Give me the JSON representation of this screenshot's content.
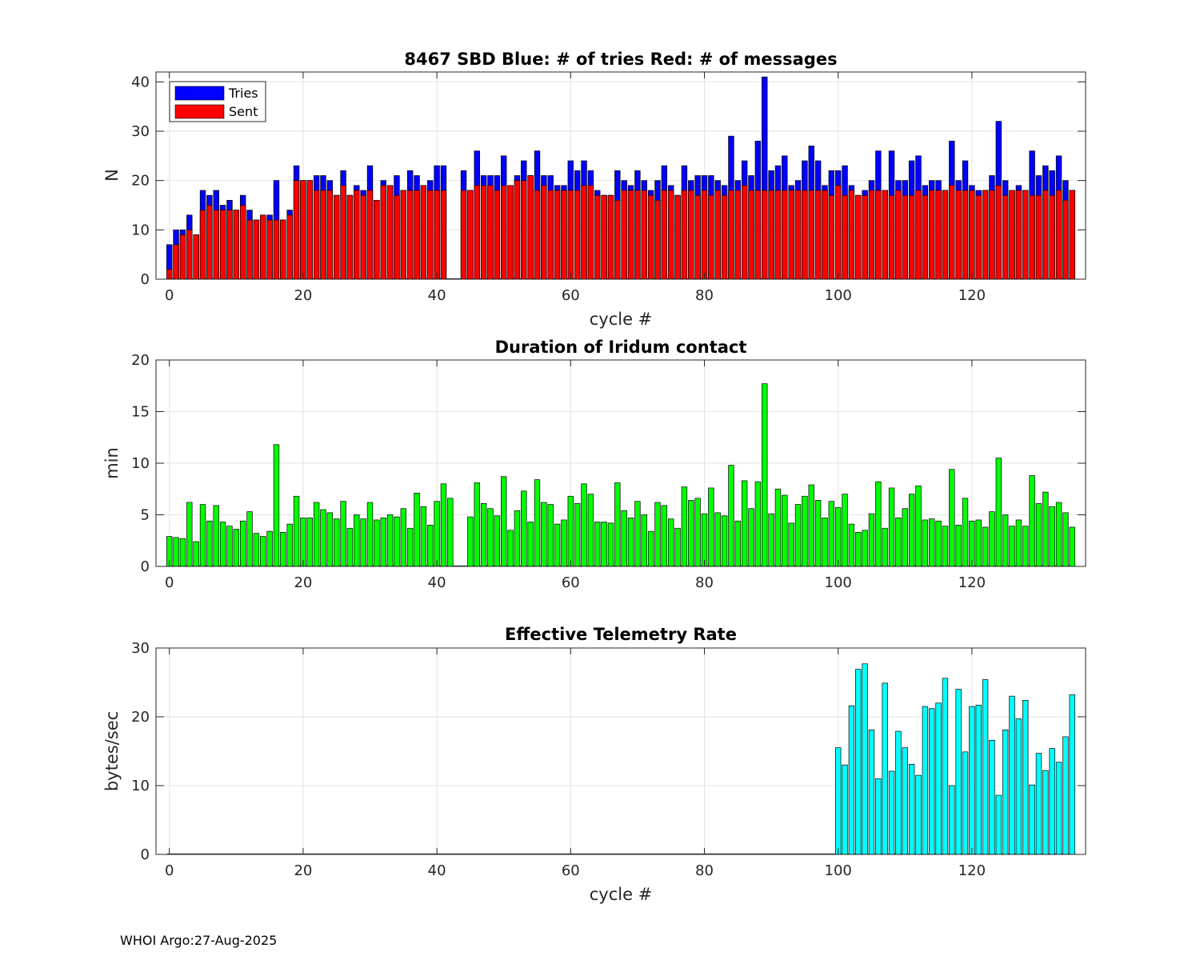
{
  "footer": "WHOI Argo:27-Aug-2025",
  "chart_data": [
    {
      "type": "bar",
      "stacked": "overlay",
      "title": "8467 SBD  Blue: # of tries   Red: # of messages",
      "xlabel": "cycle #",
      "ylabel": "N",
      "xlim": [
        -2,
        137
      ],
      "ylim": [
        0,
        42
      ],
      "xticks": [
        0,
        20,
        40,
        60,
        80,
        100,
        120
      ],
      "yticks": [
        0,
        10,
        20,
        30,
        40
      ],
      "grid": true,
      "legend_position": "top-left",
      "x_start": 0,
      "series": [
        {
          "name": "Tries",
          "color": "#0000ff",
          "values": [
            7,
            10,
            10,
            13,
            9,
            18,
            17,
            18,
            15,
            16,
            14,
            17,
            14,
            12,
            13,
            13,
            20,
            12,
            14,
            23,
            20,
            20,
            21,
            21,
            20,
            17,
            22,
            17,
            19,
            18,
            23,
            16,
            20,
            19,
            21,
            18,
            22,
            21,
            19,
            20,
            23,
            23,
            null,
            null,
            22,
            18,
            26,
            21,
            21,
            21,
            25,
            19,
            21,
            24,
            21,
            26,
            21,
            21,
            19,
            19,
            24,
            22,
            24,
            22,
            18,
            17,
            17,
            22,
            20,
            19,
            22,
            20,
            18,
            20,
            23,
            19,
            17,
            23,
            20,
            21,
            21,
            21,
            20,
            19,
            29,
            20,
            24,
            21,
            28,
            41,
            22,
            23,
            25,
            19,
            20,
            24,
            27,
            24,
            19,
            22,
            22,
            23,
            19,
            17,
            18,
            20,
            26,
            18,
            26,
            20,
            20,
            24,
            25,
            19,
            20,
            20,
            18,
            28,
            20,
            24,
            19,
            18,
            18,
            21,
            32,
            20,
            18,
            19,
            18,
            26,
            21,
            23,
            22,
            25,
            20,
            18
          ]
        },
        {
          "name": "Sent",
          "color": "#ff0000",
          "values": [
            2,
            7,
            9,
            10,
            9,
            14,
            15,
            14,
            14,
            14,
            14,
            15,
            12,
            12,
            13,
            12,
            12,
            12,
            13,
            20,
            20,
            20,
            18,
            18,
            18,
            17,
            19,
            17,
            18,
            17,
            18,
            16,
            19,
            19,
            17,
            18,
            18,
            18,
            19,
            18,
            18,
            18,
            null,
            null,
            18,
            18,
            19,
            19,
            19,
            18,
            19,
            19,
            20,
            20,
            21,
            18,
            19,
            18,
            18,
            18,
            18,
            18,
            19,
            19,
            17,
            17,
            17,
            16,
            18,
            18,
            18,
            18,
            17,
            16,
            18,
            18,
            17,
            18,
            18,
            17,
            18,
            17,
            18,
            17,
            18,
            18,
            19,
            18,
            18,
            18,
            18,
            18,
            18,
            18,
            18,
            18,
            18,
            18,
            18,
            17,
            19,
            17,
            18,
            17,
            17,
            18,
            18,
            18,
            17,
            18,
            17,
            17,
            18,
            17,
            18,
            18,
            18,
            19,
            18,
            18,
            18,
            17,
            18,
            18,
            19,
            17,
            18,
            18,
            18,
            17,
            17,
            18,
            17,
            18,
            16,
            18
          ]
        }
      ]
    },
    {
      "type": "bar",
      "title": "Duration of Iridum contact",
      "xlabel": "",
      "ylabel": "min",
      "xlim": [
        -2,
        137
      ],
      "ylim": [
        0,
        20
      ],
      "xticks": [
        0,
        20,
        40,
        60,
        80,
        100,
        120
      ],
      "yticks": [
        0,
        5,
        10,
        15,
        20
      ],
      "grid": true,
      "x_start": 0,
      "series": [
        {
          "name": "Duration",
          "color": "#00ff00",
          "values": [
            2.9,
            2.8,
            2.7,
            6.2,
            2.4,
            6.0,
            4.4,
            5.9,
            4.3,
            3.9,
            3.6,
            4.4,
            5.3,
            3.2,
            2.9,
            3.4,
            11.8,
            3.3,
            4.1,
            6.8,
            4.7,
            4.7,
            6.2,
            5.5,
            5.2,
            4.6,
            6.3,
            3.7,
            5.0,
            4.6,
            6.2,
            4.5,
            4.7,
            5.0,
            4.8,
            5.6,
            3.7,
            7.1,
            5.8,
            4.0,
            6.3,
            8.0,
            6.6,
            null,
            null,
            4.8,
            8.1,
            6.1,
            5.6,
            4.9,
            8.7,
            3.5,
            5.4,
            7.3,
            4.3,
            8.4,
            6.2,
            6.0,
            4.1,
            4.5,
            6.8,
            6.1,
            8.0,
            7.0,
            4.3,
            4.3,
            4.2,
            8.1,
            5.4,
            4.7,
            6.3,
            5.0,
            3.4,
            6.2,
            5.9,
            4.6,
            3.7,
            7.7,
            6.4,
            6.6,
            5.1,
            7.6,
            5.2,
            4.9,
            9.8,
            4.4,
            8.3,
            5.6,
            8.2,
            17.7,
            5.1,
            7.5,
            6.9,
            4.2,
            6.0,
            6.8,
            7.9,
            6.4,
            4.7,
            6.3,
            5.7,
            7.0,
            4.1,
            3.3,
            3.5,
            5.1,
            8.2,
            3.7,
            7.6,
            4.7,
            5.6,
            7.0,
            7.8,
            4.5,
            4.6,
            4.4,
            3.9,
            9.4,
            4.0,
            6.6,
            4.4,
            4.5,
            3.8,
            5.3,
            10.5,
            5.0,
            3.9,
            4.5,
            3.9,
            8.8,
            6.1,
            7.2,
            5.8,
            6.2,
            5.2,
            3.8
          ]
        }
      ]
    },
    {
      "type": "bar",
      "title": "Effective Telemetry Rate",
      "xlabel": "cycle #",
      "ylabel": "bytes/sec",
      "xlim": [
        -2,
        137
      ],
      "ylim": [
        0,
        30
      ],
      "xticks": [
        0,
        20,
        40,
        60,
        80,
        100,
        120
      ],
      "yticks": [
        0,
        10,
        20,
        30
      ],
      "grid": true,
      "x_start": 100,
      "series": [
        {
          "name": "Rate",
          "color": "#00ffff",
          "values": [
            15.5,
            13.0,
            21.6,
            26.9,
            27.7,
            18.1,
            11.0,
            24.9,
            12.1,
            17.9,
            15.5,
            13.1,
            11.5,
            21.5,
            21.2,
            22.0,
            25.6,
            10.0,
            24.0,
            14.9,
            21.5,
            21.7,
            25.4,
            16.6,
            8.6,
            18.1,
            23.0,
            19.7,
            22.4,
            10.1,
            14.7,
            12.2,
            15.4,
            13.4,
            17.1,
            23.2
          ]
        }
      ]
    }
  ]
}
